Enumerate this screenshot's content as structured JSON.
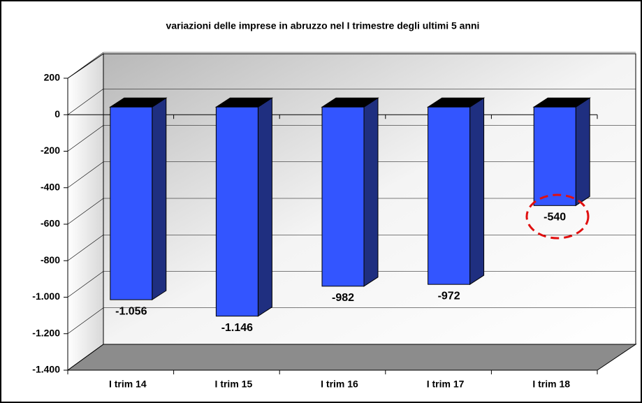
{
  "chart_data": {
    "type": "bar3d",
    "title": "variazioni delle imprese in abruzzo nel I trimestre degli ultimi 5 anni",
    "categories": [
      "I trim 14",
      "I trim 15",
      "I trim 16",
      "I trim 17",
      "I trim 18"
    ],
    "values": [
      -1056,
      -1146,
      -982,
      -972,
      -540
    ],
    "value_labels": [
      "-1.056",
      "-1.146",
      "-982",
      "-972",
      "-540"
    ],
    "color": "#3355ff",
    "ylim": [
      -1400,
      200
    ],
    "yticks": [
      200,
      0,
      -200,
      -400,
      -600,
      -800,
      {
        "value": -1000,
        "label": "-1.000"
      },
      {
        "value": -1200,
        "label": "-1.200"
      },
      {
        "value": -1400,
        "label": "-1.400"
      }
    ],
    "grid": true
  }
}
